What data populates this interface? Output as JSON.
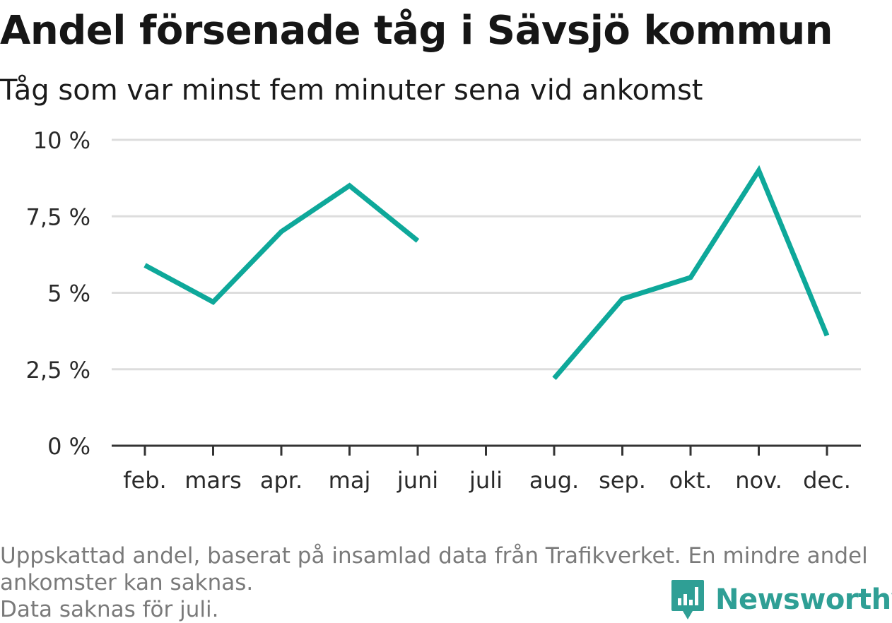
{
  "header": {
    "title": "Andel försenade tåg i Sävsjö kommun",
    "subtitle": "Tåg som var minst fem minuter sena vid ankomst"
  },
  "chart_data": {
    "type": "line",
    "title": "Andel försenade tåg i Sävsjö kommun",
    "subtitle": "Tåg som var minst fem minuter sena vid ankomst",
    "categories": [
      "feb.",
      "mars",
      "apr.",
      "maj",
      "juni",
      "juli",
      "aug.",
      "sep.",
      "okt.",
      "nov.",
      "dec."
    ],
    "series": [
      {
        "values": [
          5.9,
          4.7,
          7.0,
          8.5,
          6.7,
          null,
          2.2,
          4.8,
          5.5,
          9.0,
          3.6
        ],
        "color": "#0ea89a"
      }
    ],
    "ylim": [
      0,
      10
    ],
    "yticks": [
      0,
      2.5,
      5,
      7.5,
      10
    ],
    "ytick_labels": [
      "0 %",
      "2,5 %",
      "5 %",
      "7,5 %",
      "10 %"
    ],
    "xlabel": "",
    "ylabel": "",
    "grid": true,
    "legend": "none"
  },
  "footnote": {
    "line1": "Uppskattad andel, baserat på insamlad data från Trafikverket. En mindre andel",
    "line2": "ankomster kan saknas.",
    "line3": "Data saknas för juli."
  },
  "brand": {
    "name": "Newsworthy",
    "logo_icon": "bar-chart-badge-icon",
    "color": "#2f9f95"
  },
  "colors": {
    "line": "#0ea89a",
    "grid": "#dddddd",
    "axis": "#333333",
    "footnote": "#7a7a7a"
  }
}
